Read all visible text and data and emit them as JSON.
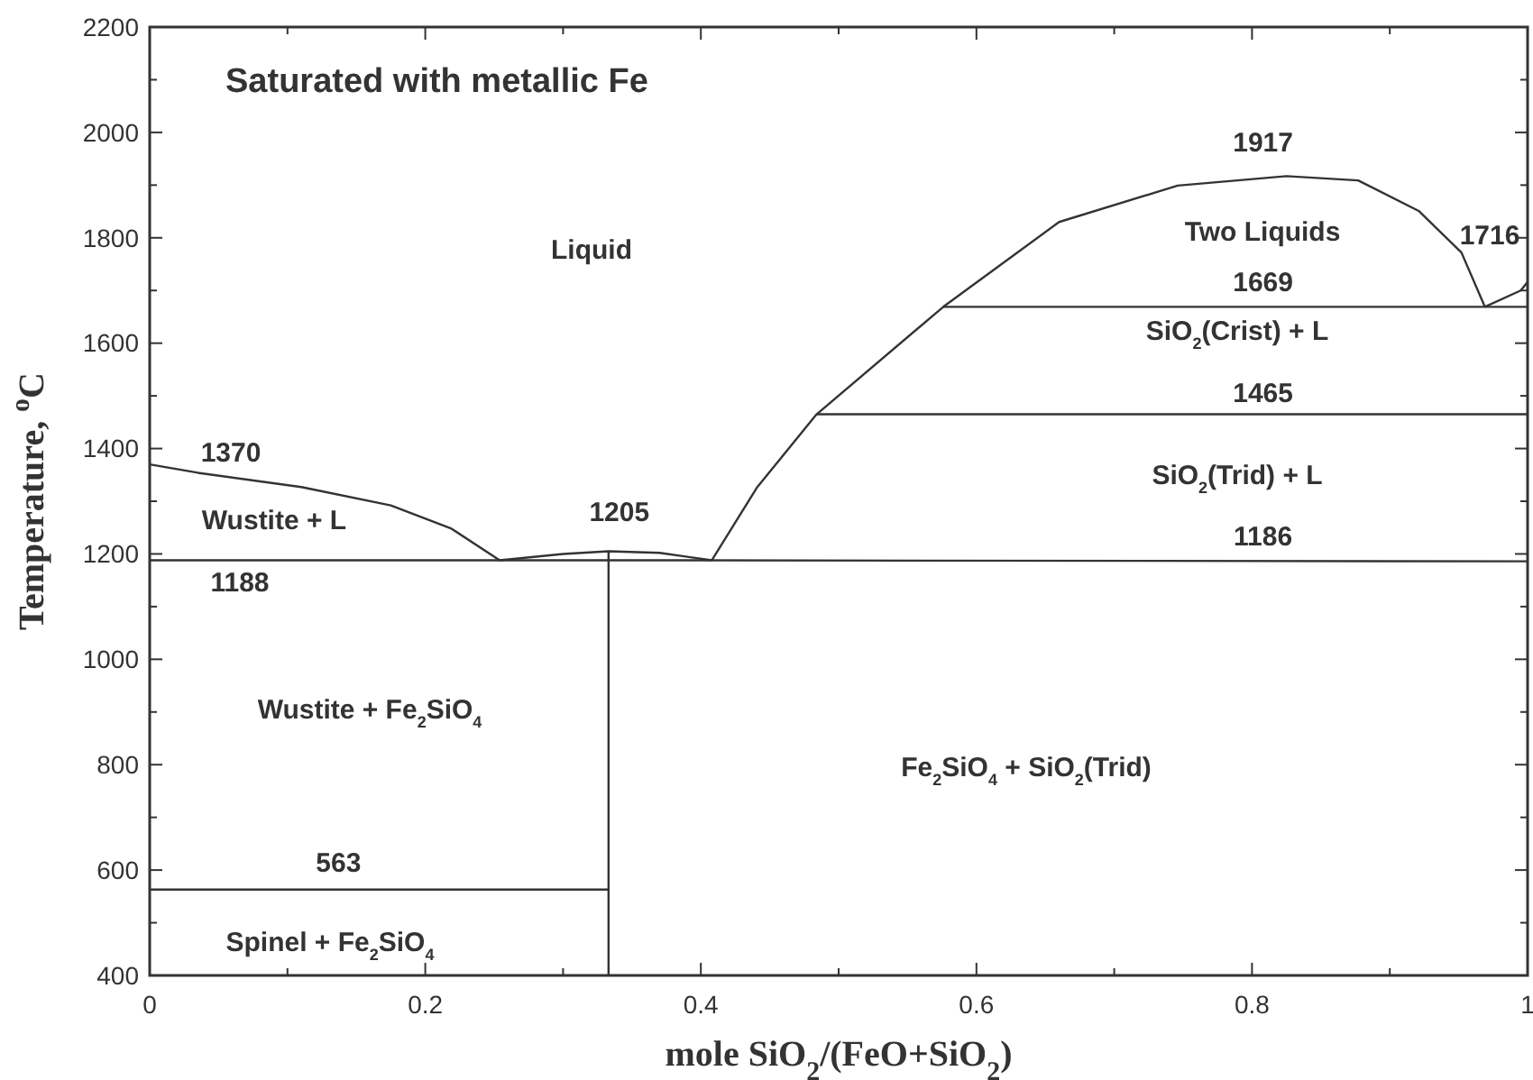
{
  "chart_data": {
    "type": "line",
    "title": "Saturated with metallic Fe",
    "xlabel": "mole SiO$_{2}$/(FeO+SiO$_{2}$)",
    "ylabel": "Temperature, $^{o}$C",
    "xlim": [
      0,
      1
    ],
    "ylim": [
      400,
      2200
    ],
    "xticks": [
      0,
      {
        "value": 0.1,
        "label": null
      },
      0.2,
      {
        "value": 0.3,
        "label": null
      },
      0.4,
      {
        "value": 0.5,
        "label": null
      },
      0.6,
      {
        "value": 0.7,
        "label": null
      },
      0.8,
      {
        "value": 0.9,
        "label": null
      },
      1
    ],
    "yticks": [
      400,
      {
        "value": 500,
        "label": null
      },
      600,
      {
        "value": 700,
        "label": null
      },
      800,
      {
        "value": 900,
        "label": null
      },
      1000,
      {
        "value": 1100,
        "label": null
      },
      1200,
      {
        "value": 1300,
        "label": null
      },
      1400,
      {
        "value": 1500,
        "label": null
      },
      1600,
      {
        "value": 1700,
        "label": null
      },
      1800,
      {
        "value": 1900,
        "label": null
      },
      2000,
      {
        "value": 2100,
        "label": null
      },
      2200
    ],
    "series": [
      {
        "color": "#333333",
        "x": [
          0,
          0.035,
          0.11,
          0.175,
          0.219,
          0.254
        ],
        "values": [
          1370,
          1354,
          1327,
          1292,
          1248,
          1188
        ]
      },
      {
        "color": "#333333",
        "x": [
          0.254,
          0.3,
          0.333,
          0.37,
          0.408
        ],
        "values": [
          1188,
          1200,
          1205,
          1202,
          1188
        ]
      },
      {
        "color": "#333333",
        "x": [
          0.408,
          0.441,
          0.484,
          0.576,
          0.66,
          0.746,
          0.825,
          0.877,
          0.921,
          0.952,
          0.969
        ],
        "values": [
          1188,
          1327,
          1465,
          1669,
          1830,
          1899,
          1917,
          1909,
          1851,
          1772,
          1669
        ]
      },
      {
        "color": "#333333",
        "x": [
          0.969,
          0.995,
          1
        ],
        "values": [
          1669,
          1700,
          1716
        ]
      },
      {
        "color": "#333333",
        "x": [
          0,
          0.333,
          1
        ],
        "values": [
          1188,
          1188,
          1186
        ]
      },
      {
        "color": "#333333",
        "x": [
          0.576,
          1
        ],
        "values": [
          1669,
          1669
        ]
      },
      {
        "color": "#333333",
        "x": [
          0.484,
          1
        ],
        "values": [
          1465,
          1465
        ]
      },
      {
        "color": "#333333",
        "x": [
          0,
          0.333
        ],
        "values": [
          563,
          563
        ]
      },
      {
        "color": "#333333",
        "x": [
          0.333,
          0.333
        ],
        "values": [
          400,
          1205
        ]
      }
    ],
    "annotations": [
      {
        "text": "1370",
        "x": 0,
        "y": 1370
      },
      "Wustite + L",
      {
        "text": "1188",
        "x": 0,
        "y": 1188
      },
      {
        "text": "1205",
        "x": 0.333,
        "y": 1205
      },
      "Liquid",
      {
        "text": "1917",
        "x": 0.825,
        "y": 1917
      },
      "Two Liquids",
      {
        "text": "1669",
        "x": 0.808,
        "y": 1669
      },
      {
        "text": "1716",
        "x": 1,
        "y": 1716
      },
      "SiO$_{2}$(Crist) + L",
      {
        "text": "1465",
        "x": 0.808,
        "y": 1465
      },
      "SiO$_{2}$(Trid) + L",
      {
        "text": "1186",
        "x": 0.808,
        "y": 1186
      },
      "Wustite + Fe$_{2}$SiO$_{4}$",
      "Fe$_{2}$SiO$_{4}$ + SiO$_{2}$(Trid)",
      {
        "text": "563",
        "x": 0.137,
        "y": 563
      },
      "Spinel + Fe$_{2}$SiO$_{4}$"
    ]
  }
}
